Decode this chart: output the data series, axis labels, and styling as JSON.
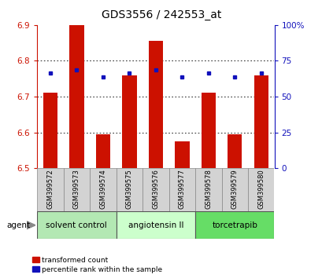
{
  "title": "GDS3556 / 242553_at",
  "samples": [
    "GSM399572",
    "GSM399573",
    "GSM399574",
    "GSM399575",
    "GSM399576",
    "GSM399577",
    "GSM399578",
    "GSM399579",
    "GSM399580"
  ],
  "red_values": [
    6.71,
    6.9,
    6.595,
    6.76,
    6.855,
    6.575,
    6.71,
    6.595,
    6.76
  ],
  "blue_values": [
    6.765,
    6.775,
    6.755,
    6.765,
    6.775,
    6.755,
    6.765,
    6.755,
    6.765
  ],
  "ylim_left": [
    6.5,
    6.9
  ],
  "ylim_right": [
    0,
    100
  ],
  "yticks_left": [
    6.5,
    6.6,
    6.7,
    6.8,
    6.9
  ],
  "yticks_right": [
    0,
    25,
    50,
    75,
    100
  ],
  "ytick_labels_right": [
    "0",
    "25",
    "50",
    "75",
    "100%"
  ],
  "groups": [
    {
      "label": "solvent control",
      "samples": [
        0,
        1,
        2
      ],
      "color": "#b3e8b3"
    },
    {
      "label": "angiotensin II",
      "samples": [
        3,
        4,
        5
      ],
      "color": "#ccffcc"
    },
    {
      "label": "torcetrapib",
      "samples": [
        6,
        7,
        8
      ],
      "color": "#66dd66"
    }
  ],
  "bar_color": "#cc1100",
  "dot_color": "#1111bb",
  "bar_width": 0.55,
  "grid_color": "black",
  "agent_label": "agent",
  "legend_red": "transformed count",
  "legend_blue": "percentile rank within the sample",
  "background_plot": "#ffffff",
  "tick_color_left": "#cc1100",
  "tick_color_right": "#1111bb",
  "bottom_panel_color": "#d3d3d3",
  "base_value": 6.5
}
